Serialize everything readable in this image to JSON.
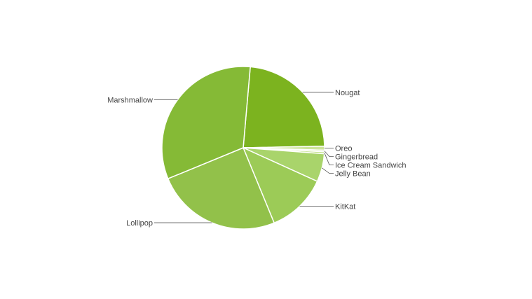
{
  "chart_data": {
    "type": "pie",
    "title": "",
    "labels": [
      "Nougat",
      "Oreo",
      "Gingerbread",
      "Ice Cream Sandwich",
      "Jelly Bean",
      "KitKat",
      "Lollipop",
      "Marshmallow"
    ],
    "values": [
      23.3,
      0.8,
      0.3,
      0.4,
      5.6,
      12.0,
      25.0,
      32.6
    ],
    "colors": [
      "#7cb31f",
      "#cde59a",
      "#c9e392",
      "#bede82",
      "#a9d46b",
      "#9ccb57",
      "#92c14a",
      "#85ba36"
    ],
    "start_angle_deg": -85,
    "direction": "clockwise",
    "legend": "none",
    "leader_labels": true
  }
}
